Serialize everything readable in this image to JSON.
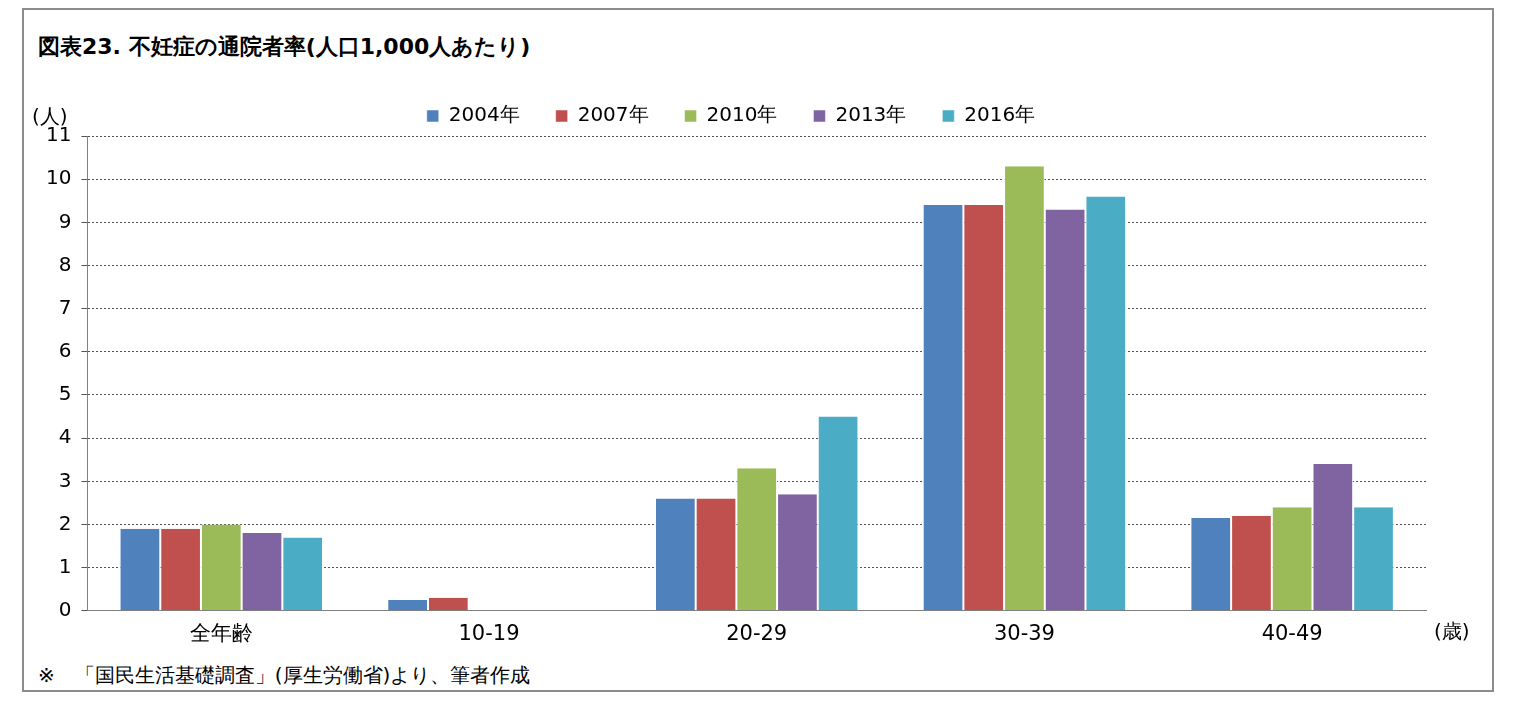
{
  "chart_data": {
    "type": "bar",
    "title": "図表23. 不妊症の通院者率(人口1,000人あたり)",
    "y_label": "(人)",
    "x_label": "(歳)",
    "note": "※　「国民生活基礎調査」(厚生労働省)より、筆者作成",
    "categories": [
      "全年齢",
      "10-19",
      "20-29",
      "30-39",
      "40-49"
    ],
    "series": [
      {
        "name": "2004年",
        "color": "#4f81bd",
        "values": [
          1.9,
          0.25,
          2.6,
          9.4,
          2.15
        ]
      },
      {
        "name": "2007年",
        "color": "#c0504d",
        "values": [
          1.9,
          0.3,
          2.6,
          9.4,
          2.2
        ]
      },
      {
        "name": "2010年",
        "color": "#9bbb59",
        "values": [
          2.0,
          null,
          3.3,
          10.3,
          2.4
        ]
      },
      {
        "name": "2013年",
        "color": "#8064a2",
        "values": [
          1.8,
          null,
          2.7,
          9.3,
          3.4
        ]
      },
      {
        "name": "2016年",
        "color": "#4bacc6",
        "values": [
          1.7,
          null,
          4.5,
          9.6,
          2.4
        ]
      }
    ],
    "ylim": [
      0,
      11
    ],
    "yticks": [
      0,
      1,
      2,
      3,
      4,
      5,
      6,
      7,
      8,
      9,
      10,
      11
    ],
    "grid": true,
    "legend": "top"
  }
}
